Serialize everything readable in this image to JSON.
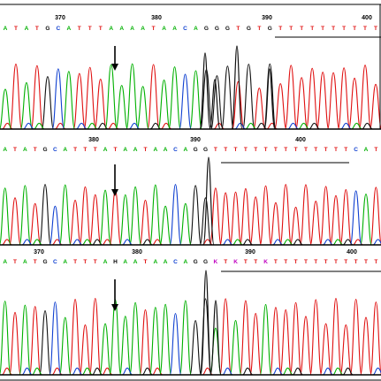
{
  "colors": {
    "A": "#00b000",
    "C": "#1040d0",
    "G": "#111111",
    "T": "#e01010",
    "K": "#c000c0",
    "N": "#c000c0",
    "arrow": "#000000",
    "baseline": "#000000"
  },
  "panels": [
    {
      "id": "panel-1",
      "position_labels": [
        "370",
        "380",
        "390",
        "400"
      ],
      "bases": "ATATGCATTTAAAATAACAGGGTGTGTTTTTTTTTT"
    },
    {
      "id": "panel-2",
      "position_labels": [
        "380",
        "390",
        "400"
      ],
      "bases": "ATATGCATTTATAATAACAGGTTTTTTTTTTTTTTCAT"
    },
    {
      "id": "panel-3",
      "position_labels": [
        "370",
        "380",
        "390",
        "400"
      ],
      "bases": "ATATGCATTTAHAATAACAGGKTKTTKTTTTTTTTTTT"
    }
  ]
}
